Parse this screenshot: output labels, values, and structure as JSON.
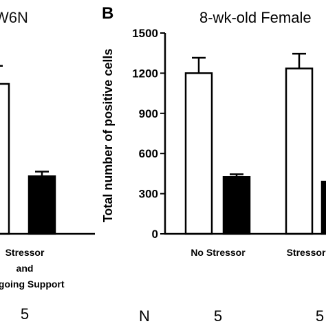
{
  "chart_data": [
    {
      "type": "bar",
      "panel_label": "",
      "title": "W6N",
      "ylabel": "",
      "ylim": [
        0,
        1500
      ],
      "categories": [
        "Stressor and Ongoing Support"
      ],
      "category_lines": [
        [
          "Stressor",
          "and",
          "Ongoing Support"
        ]
      ],
      "series": [
        {
          "name": "",
          "fill": "#ffffff",
          "values": [
            1120
          ],
          "errors": [
            135
          ]
        },
        {
          "name": "",
          "fill": "#000000",
          "values": [
            430
          ],
          "errors": [
            35
          ]
        }
      ],
      "n_label": "",
      "n_values": [
        "5"
      ],
      "grid": false
    },
    {
      "type": "bar",
      "panel_label": "B",
      "title": "8-wk-old Female",
      "ylabel": "Total number of positive cells",
      "ylim": [
        0,
        1500
      ],
      "yticks": [
        "0",
        "300",
        "600",
        "900",
        "1200",
        "1500"
      ],
      "categories": [
        "No Stressor",
        "Stressor"
      ],
      "series": [
        {
          "name": "",
          "fill": "#ffffff",
          "values": [
            1200,
            1235
          ],
          "errors": [
            115,
            110
          ]
        },
        {
          "name": "",
          "fill": "#000000",
          "values": [
            425,
            390
          ],
          "errors": [
            20,
            0
          ]
        }
      ],
      "n_label": "N",
      "n_values": [
        "5",
        "5"
      ],
      "grid": false
    }
  ]
}
